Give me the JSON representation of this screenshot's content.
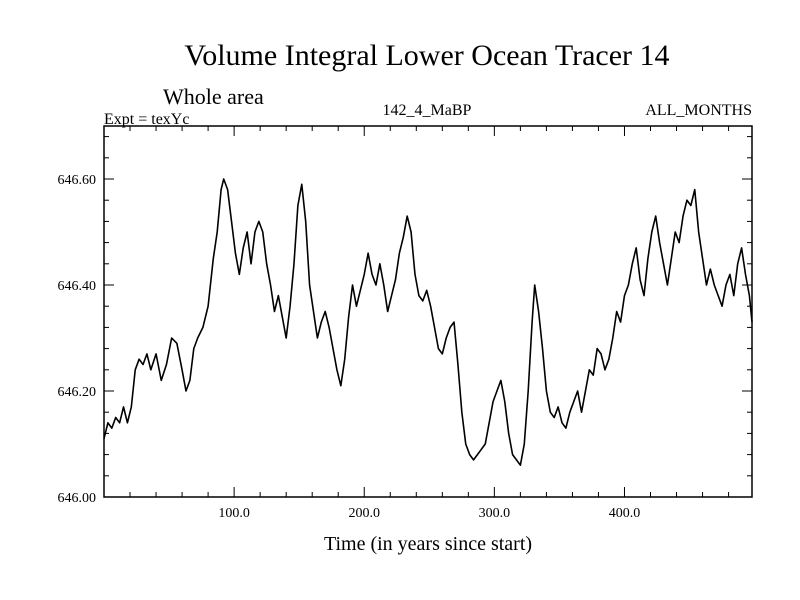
{
  "header": {
    "title": "Volume Integral Lower Ocean Tracer 14",
    "subtitle": "Whole area",
    "expt": "Expt = texYc",
    "run_id": "142_4_MaBP",
    "period": "ALL_MONTHS"
  },
  "chart_data": {
    "type": "line",
    "title": "Volume Integral Lower Ocean Tracer 14",
    "subtitle": "Whole area",
    "xlabel": "Time (in years since start)",
    "ylabel": "",
    "xlim": [
      0,
      498
    ],
    "ylim": [
      646.0,
      646.7
    ],
    "x_ticks": [
      100.0,
      200.0,
      300.0,
      400.0
    ],
    "x_tick_labels": [
      "100.0",
      "200.0",
      "300.0",
      "400.0"
    ],
    "y_ticks": [
      646.0,
      646.2,
      646.4,
      646.6
    ],
    "y_tick_labels": [
      "646.00",
      "646.20",
      "646.40",
      "646.60"
    ],
    "grid": false,
    "series": [
      {
        "color": "#000000",
        "points": [
          [
            0,
            646.11
          ],
          [
            3,
            646.14
          ],
          [
            6,
            646.13
          ],
          [
            9,
            646.15
          ],
          [
            12,
            646.14
          ],
          [
            15,
            646.17
          ],
          [
            18,
            646.14
          ],
          [
            21,
            646.17
          ],
          [
            24,
            646.24
          ],
          [
            27,
            646.26
          ],
          [
            30,
            646.25
          ],
          [
            33,
            646.27
          ],
          [
            36,
            646.24
          ],
          [
            40,
            646.27
          ],
          [
            44,
            646.22
          ],
          [
            48,
            646.25
          ],
          [
            52,
            646.3
          ],
          [
            56,
            646.29
          ],
          [
            60,
            646.24
          ],
          [
            63,
            646.2
          ],
          [
            66,
            646.22
          ],
          [
            69,
            646.28
          ],
          [
            72,
            646.3
          ],
          [
            76,
            646.32
          ],
          [
            80,
            646.36
          ],
          [
            84,
            646.45
          ],
          [
            87,
            646.5
          ],
          [
            90,
            646.58
          ],
          [
            92,
            646.6
          ],
          [
            95,
            646.58
          ],
          [
            98,
            646.52
          ],
          [
            101,
            646.46
          ],
          [
            104,
            646.42
          ],
          [
            107,
            646.47
          ],
          [
            110,
            646.5
          ],
          [
            113,
            646.44
          ],
          [
            116,
            646.5
          ],
          [
            119,
            646.52
          ],
          [
            122,
            646.5
          ],
          [
            125,
            646.44
          ],
          [
            128,
            646.4
          ],
          [
            131,
            646.35
          ],
          [
            134,
            646.38
          ],
          [
            137,
            646.34
          ],
          [
            140,
            646.3
          ],
          [
            143,
            646.36
          ],
          [
            146,
            646.44
          ],
          [
            149,
            646.55
          ],
          [
            152,
            646.59
          ],
          [
            155,
            646.52
          ],
          [
            158,
            646.4
          ],
          [
            161,
            646.35
          ],
          [
            164,
            646.3
          ],
          [
            167,
            646.33
          ],
          [
            170,
            646.35
          ],
          [
            173,
            646.32
          ],
          [
            176,
            646.28
          ],
          [
            179,
            646.24
          ],
          [
            182,
            646.21
          ],
          [
            185,
            646.26
          ],
          [
            188,
            646.34
          ],
          [
            191,
            646.4
          ],
          [
            194,
            646.36
          ],
          [
            197,
            646.39
          ],
          [
            200,
            646.42
          ],
          [
            203,
            646.46
          ],
          [
            206,
            646.42
          ],
          [
            209,
            646.4
          ],
          [
            212,
            646.44
          ],
          [
            215,
            646.4
          ],
          [
            218,
            646.35
          ],
          [
            221,
            646.38
          ],
          [
            224,
            646.41
          ],
          [
            227,
            646.46
          ],
          [
            230,
            646.49
          ],
          [
            233,
            646.53
          ],
          [
            236,
            646.5
          ],
          [
            239,
            646.42
          ],
          [
            242,
            646.38
          ],
          [
            245,
            646.37
          ],
          [
            248,
            646.39
          ],
          [
            251,
            646.36
          ],
          [
            254,
            646.32
          ],
          [
            257,
            646.28
          ],
          [
            260,
            646.27
          ],
          [
            263,
            646.3
          ],
          [
            266,
            646.32
          ],
          [
            269,
            646.33
          ],
          [
            272,
            646.25
          ],
          [
            275,
            646.16
          ],
          [
            278,
            646.1
          ],
          [
            281,
            646.08
          ],
          [
            284,
            646.07
          ],
          [
            287,
            646.08
          ],
          [
            290,
            646.09
          ],
          [
            293,
            646.1
          ],
          [
            296,
            646.14
          ],
          [
            299,
            646.18
          ],
          [
            302,
            646.2
          ],
          [
            305,
            646.22
          ],
          [
            308,
            646.18
          ],
          [
            311,
            646.12
          ],
          [
            314,
            646.08
          ],
          [
            317,
            646.07
          ],
          [
            320,
            646.06
          ],
          [
            323,
            646.1
          ],
          [
            326,
            646.2
          ],
          [
            329,
            646.33
          ],
          [
            331,
            646.4
          ],
          [
            334,
            646.35
          ],
          [
            337,
            646.28
          ],
          [
            340,
            646.2
          ],
          [
            343,
            646.16
          ],
          [
            346,
            646.15
          ],
          [
            349,
            646.17
          ],
          [
            352,
            646.14
          ],
          [
            355,
            646.13
          ],
          [
            358,
            646.16
          ],
          [
            361,
            646.18
          ],
          [
            364,
            646.2
          ],
          [
            367,
            646.16
          ],
          [
            370,
            646.2
          ],
          [
            373,
            646.24
          ],
          [
            376,
            646.23
          ],
          [
            379,
            646.28
          ],
          [
            382,
            646.27
          ],
          [
            385,
            646.24
          ],
          [
            388,
            646.26
          ],
          [
            391,
            646.3
          ],
          [
            394,
            646.35
          ],
          [
            397,
            646.33
          ],
          [
            400,
            646.38
          ],
          [
            403,
            646.4
          ],
          [
            406,
            646.44
          ],
          [
            409,
            646.47
          ],
          [
            412,
            646.41
          ],
          [
            415,
            646.38
          ],
          [
            418,
            646.45
          ],
          [
            421,
            646.5
          ],
          [
            424,
            646.53
          ],
          [
            427,
            646.48
          ],
          [
            430,
            646.44
          ],
          [
            433,
            646.4
          ],
          [
            436,
            646.45
          ],
          [
            439,
            646.5
          ],
          [
            442,
            646.48
          ],
          [
            445,
            646.53
          ],
          [
            448,
            646.56
          ],
          [
            451,
            646.55
          ],
          [
            454,
            646.58
          ],
          [
            457,
            646.5
          ],
          [
            460,
            646.45
          ],
          [
            463,
            646.4
          ],
          [
            466,
            646.43
          ],
          [
            469,
            646.4
          ],
          [
            472,
            646.38
          ],
          [
            475,
            646.36
          ],
          [
            478,
            646.4
          ],
          [
            481,
            646.42
          ],
          [
            484,
            646.38
          ],
          [
            487,
            646.44
          ],
          [
            490,
            646.47
          ],
          [
            493,
            646.42
          ],
          [
            496,
            646.38
          ],
          [
            498,
            646.33
          ]
        ]
      }
    ]
  }
}
